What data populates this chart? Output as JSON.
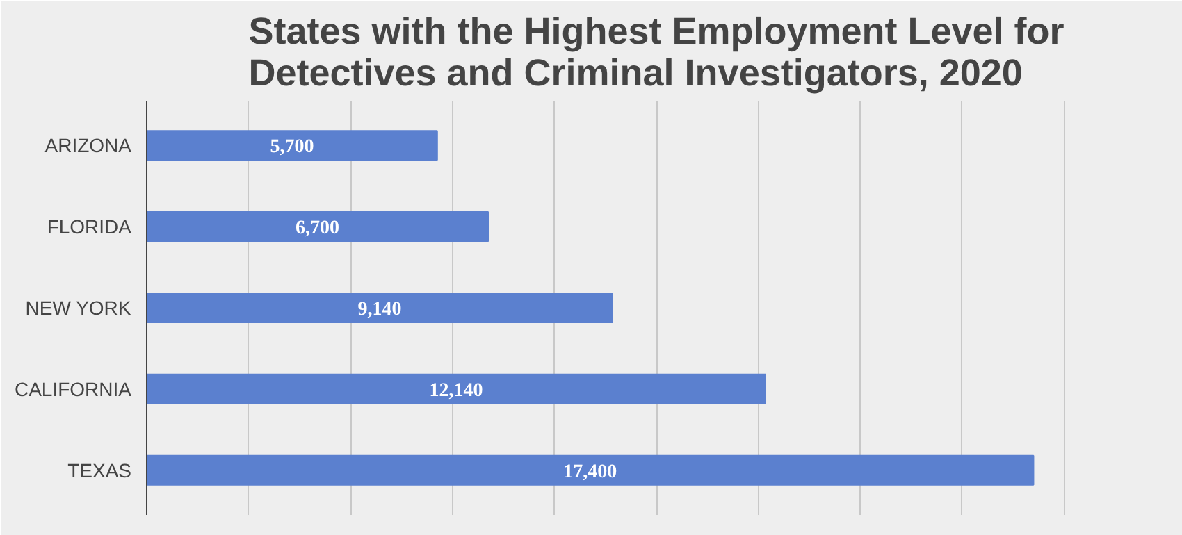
{
  "chart_data": {
    "type": "bar",
    "orientation": "horizontal",
    "title": "States with the Highest Employment Level for\nDetectives and Criminal Investigators, 2020",
    "categories": [
      "ARIZONA",
      "FLORIDA",
      "NEW YORK",
      "CALIFORNIA",
      "TEXAS"
    ],
    "values": [
      5700,
      6700,
      9140,
      12140,
      17400
    ],
    "value_labels": [
      "5,700",
      "6,700",
      "9,140",
      "12,140",
      "17,400"
    ],
    "color": "#5b80cf",
    "xlim": [
      0,
      20000
    ],
    "xticks": [
      {
        "value": 0,
        "label": null
      },
      {
        "value": 2000,
        "label": null
      },
      {
        "value": 4000,
        "label": null
      },
      {
        "value": 6000,
        "label": null
      },
      {
        "value": 8000,
        "label": null
      },
      {
        "value": 10000,
        "label": null
      },
      {
        "value": 12000,
        "label": null
      },
      {
        "value": 14000,
        "label": null
      },
      {
        "value": 16000,
        "label": null
      },
      {
        "value": 18000,
        "label": null
      },
      {
        "value": 20000,
        "label": null
      }
    ],
    "tick_labels": "y",
    "grid": "x"
  }
}
